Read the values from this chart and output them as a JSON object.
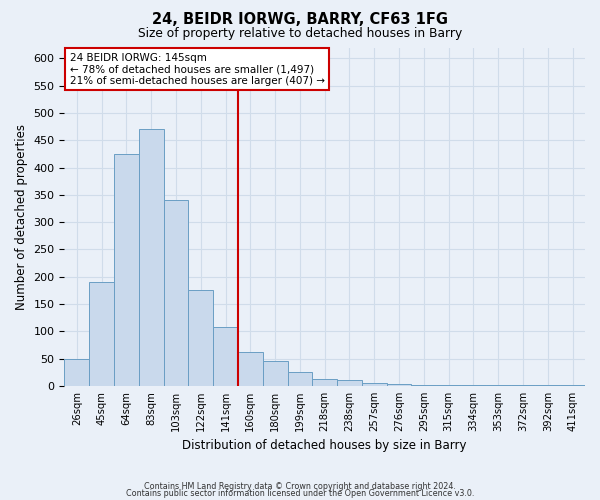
{
  "title": "24, BEIDR IORWG, BARRY, CF63 1FG",
  "subtitle": "Size of property relative to detached houses in Barry",
  "xlabel": "Distribution of detached houses by size in Barry",
  "ylabel": "Number of detached properties",
  "bar_labels": [
    "26sqm",
    "45sqm",
    "64sqm",
    "83sqm",
    "103sqm",
    "122sqm",
    "141sqm",
    "160sqm",
    "180sqm",
    "199sqm",
    "218sqm",
    "238sqm",
    "257sqm",
    "276sqm",
    "295sqm",
    "315sqm",
    "334sqm",
    "353sqm",
    "372sqm",
    "392sqm",
    "411sqm"
  ],
  "bar_values": [
    50,
    190,
    425,
    470,
    340,
    175,
    108,
    62,
    45,
    25,
    12,
    10,
    5,
    3,
    2,
    2,
    1,
    1,
    1,
    1,
    1
  ],
  "bar_color": "#c9d9ec",
  "bar_edge_color": "#6a9ec4",
  "vline_color": "#cc0000",
  "vline_index": 6,
  "annotation_title": "24 BEIDR IORWG: 145sqm",
  "annotation_line1": "← 78% of detached houses are smaller (1,497)",
  "annotation_line2": "21% of semi-detached houses are larger (407) →",
  "annotation_box_color": "#ffffff",
  "annotation_border_color": "#cc0000",
  "ylim": [
    0,
    620
  ],
  "yticks": [
    0,
    50,
    100,
    150,
    200,
    250,
    300,
    350,
    400,
    450,
    500,
    550,
    600
  ],
  "footer1": "Contains HM Land Registry data © Crown copyright and database right 2024.",
  "footer2": "Contains public sector information licensed under the Open Government Licence v3.0.",
  "background_color": "#eaf0f8",
  "plot_bg_color": "#eaf0f8",
  "grid_color": "#d0dcea"
}
